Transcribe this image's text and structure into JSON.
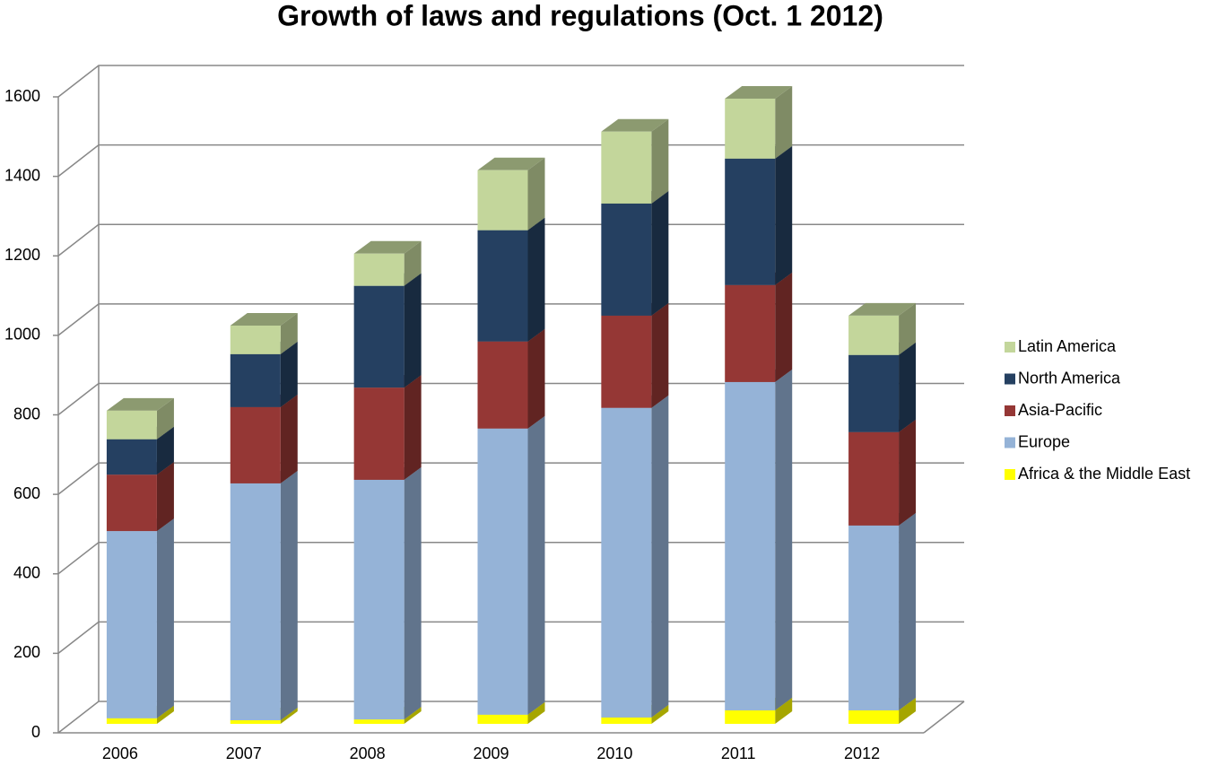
{
  "chart_data": {
    "type": "bar3d_stacked",
    "title": "Growth of laws and regulations (Oct. 1 2012)",
    "categories": [
      "2006",
      "2007",
      "2008",
      "2009",
      "2010",
      "2011",
      "2012"
    ],
    "series": [
      {
        "name": "Africa & the Middle East",
        "color": "#ffff00",
        "values": [
          14,
          9,
          11,
          23,
          16,
          34,
          34
        ]
      },
      {
        "name": "Europe",
        "color": "#95b3d7",
        "values": [
          471,
          596,
          603,
          720,
          779,
          826,
          465
        ]
      },
      {
        "name": "Asia-Pacific",
        "color": "#953735",
        "values": [
          142,
          192,
          232,
          219,
          232,
          244,
          235
        ]
      },
      {
        "name": "North America",
        "color": "#254061",
        "values": [
          89,
          133,
          256,
          280,
          282,
          318,
          194
        ]
      },
      {
        "name": "Latin America",
        "color": "#c3d69b",
        "values": [
          72,
          72,
          81,
          151,
          181,
          151,
          99
        ]
      }
    ],
    "ylim": [
      0,
      1600
    ],
    "yticks": [
      0,
      200,
      400,
      600,
      800,
      1000,
      1200,
      1400,
      1600
    ],
    "grid": true,
    "legend": "right"
  }
}
